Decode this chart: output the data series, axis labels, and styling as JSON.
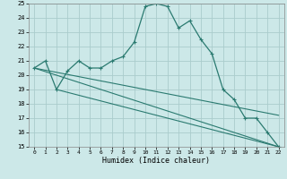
{
  "xlabel": "Humidex (Indice chaleur)",
  "ylabel": "",
  "xlim": [
    -0.5,
    22.5
  ],
  "ylim": [
    15,
    25
  ],
  "xticks": [
    0,
    1,
    2,
    3,
    4,
    5,
    6,
    7,
    8,
    9,
    10,
    11,
    12,
    13,
    14,
    15,
    16,
    17,
    18,
    19,
    20,
    21,
    22
  ],
  "yticks": [
    15,
    16,
    17,
    18,
    19,
    20,
    21,
    22,
    23,
    24,
    25
  ],
  "bg_color": "#cce8e8",
  "grid_color": "#aacccc",
  "line_color": "#2a7a70",
  "main_x": [
    0,
    1,
    2,
    3,
    4,
    5,
    6,
    7,
    8,
    9,
    10,
    11,
    12,
    13,
    14,
    15,
    16,
    17,
    18,
    19,
    20,
    21,
    22
  ],
  "main_y": [
    20.5,
    21.0,
    19.0,
    20.3,
    21.0,
    20.5,
    20.5,
    21.0,
    21.3,
    22.3,
    24.8,
    25.0,
    24.8,
    23.3,
    23.8,
    22.5,
    21.5,
    19.0,
    18.3,
    17.0,
    17.0,
    16.0,
    15.0
  ],
  "line2_x": [
    0,
    22
  ],
  "line2_y": [
    20.5,
    15.0
  ],
  "line3_x": [
    2,
    22
  ],
  "line3_y": [
    19.0,
    15.0
  ],
  "line4_x": [
    0,
    22
  ],
  "line4_y": [
    20.5,
    17.2
  ]
}
